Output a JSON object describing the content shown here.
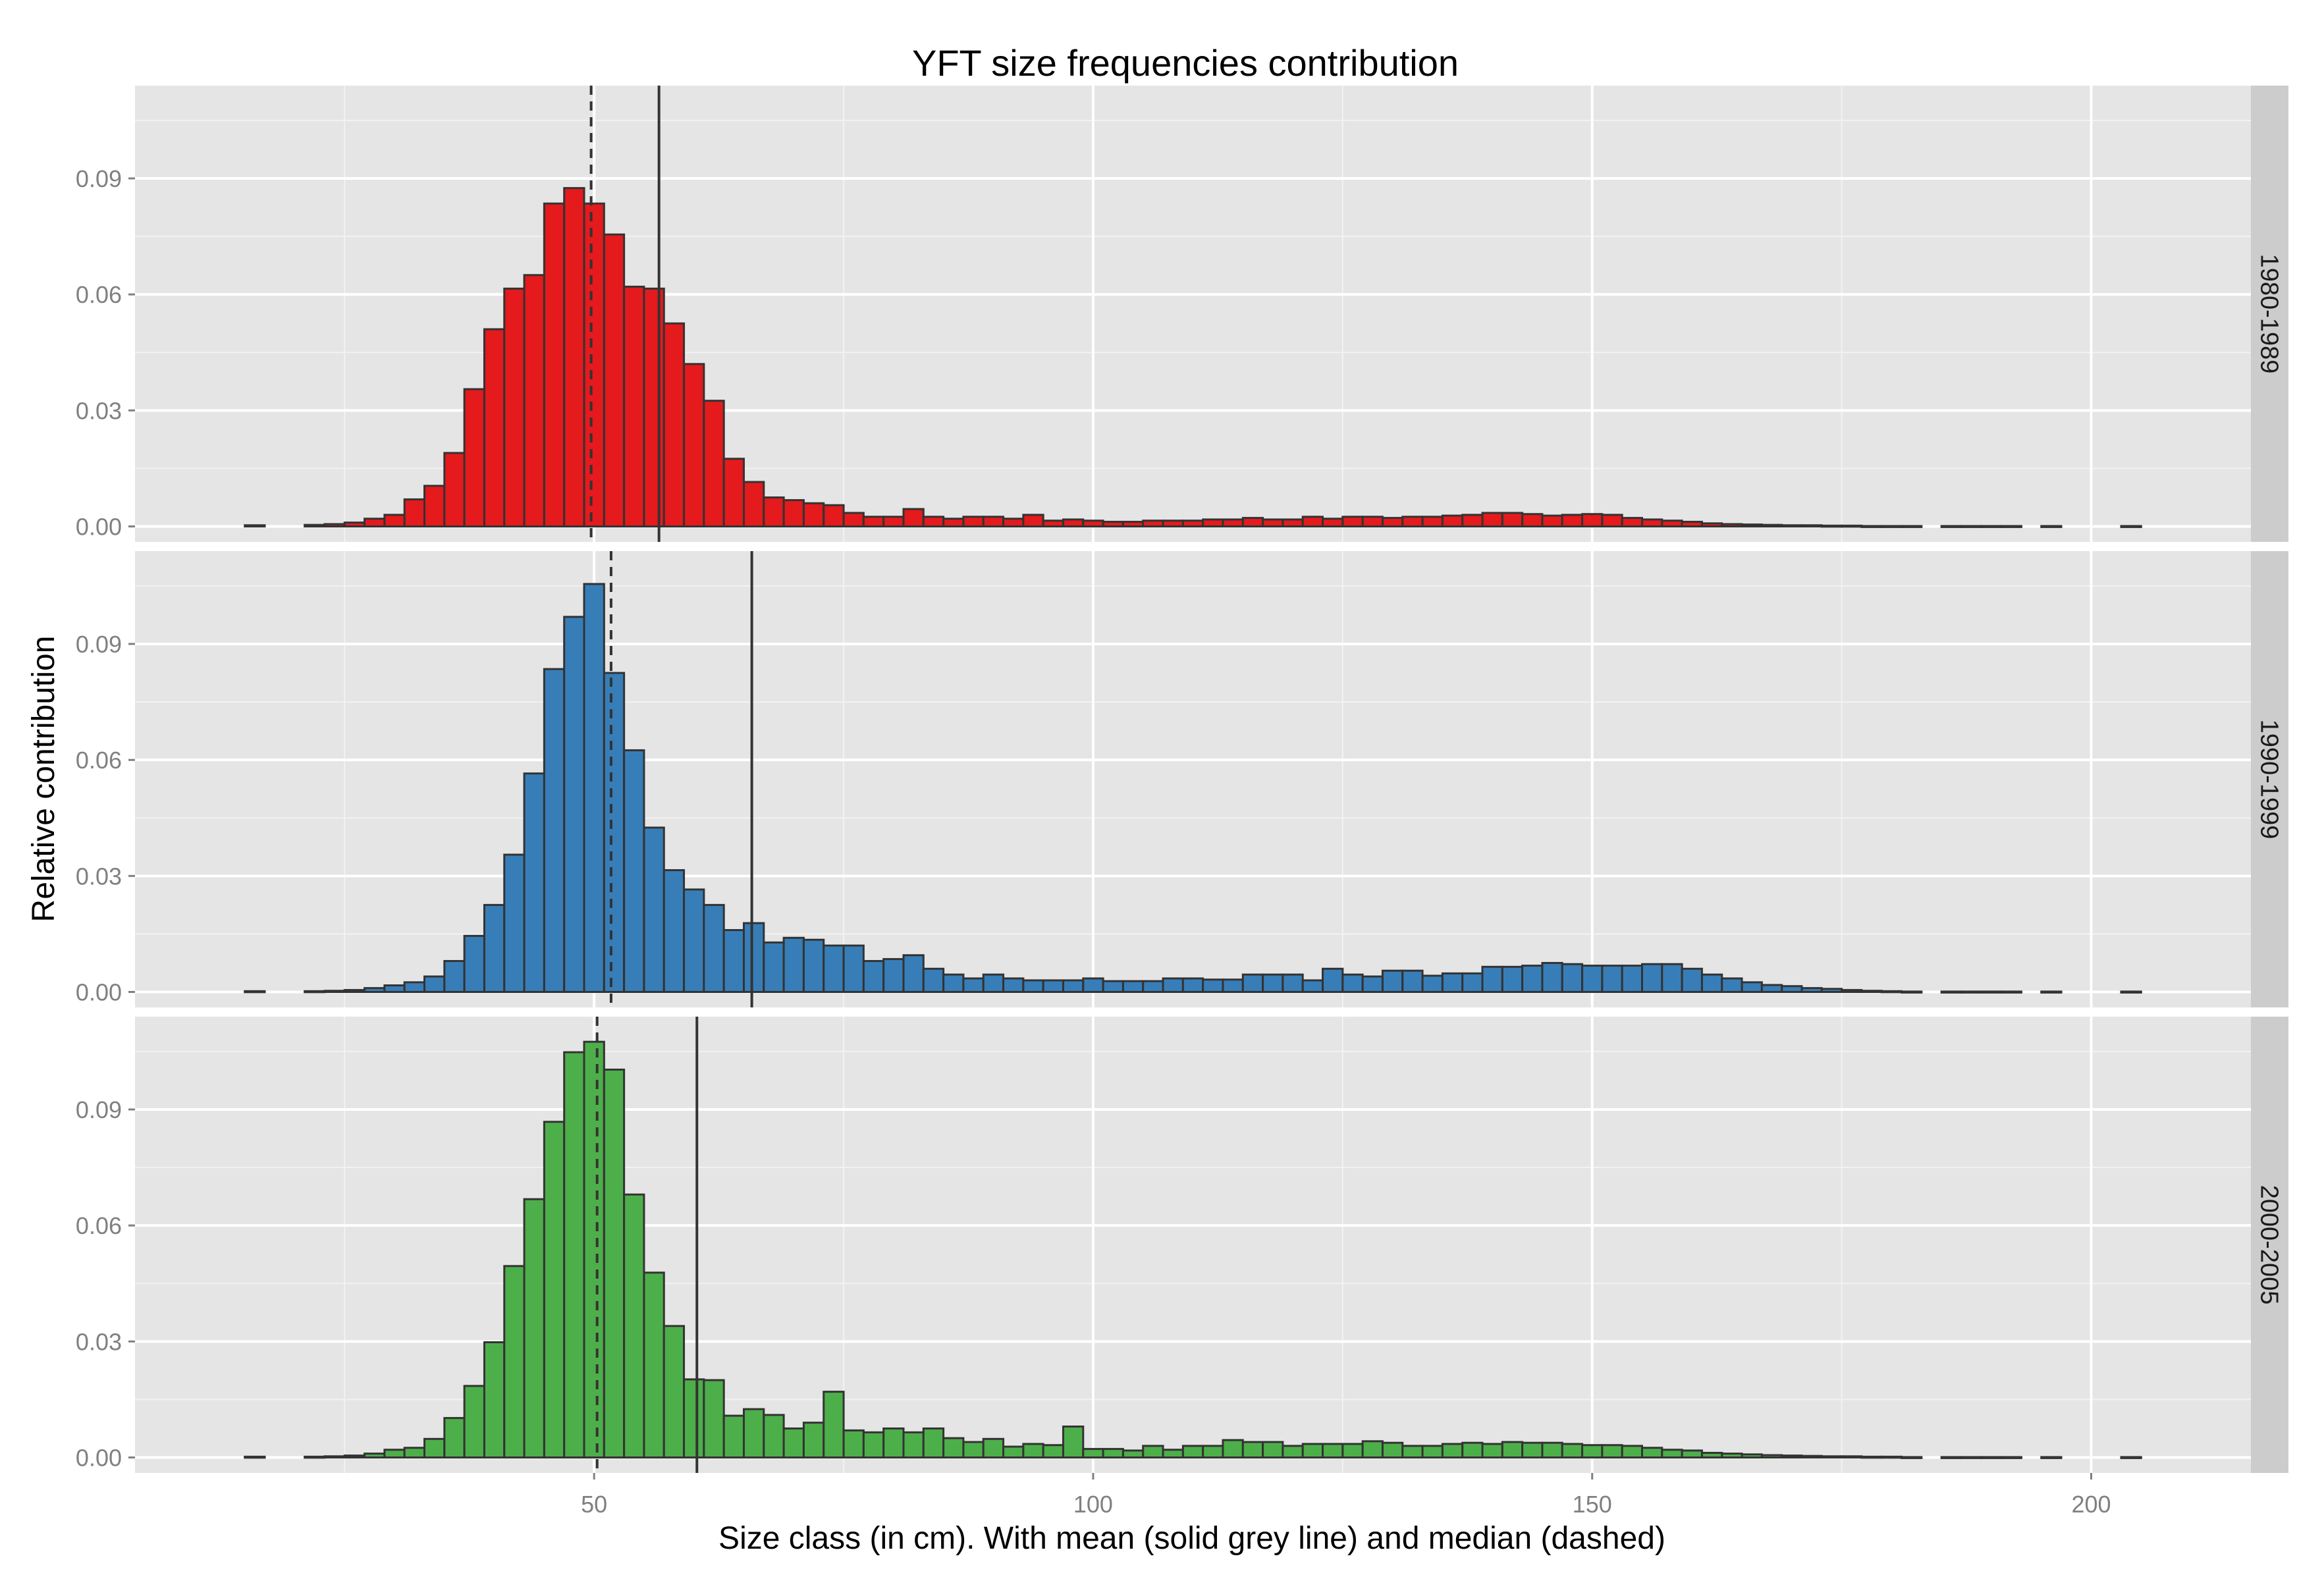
{
  "chart_data": {
    "type": "bar",
    "title": "YFT size frequencies contribution",
    "xlabel": "Size class (in cm). With mean (solid grey line) and median (dashed)",
    "ylabel": "Relative contribution",
    "xlim": [
      4,
      216
    ],
    "ylim": [
      -0.004,
      0.114
    ],
    "x_ticks": [
      50,
      100,
      150,
      200
    ],
    "x_tick_labels": [
      "50",
      "100",
      "150",
      "200"
    ],
    "y_ticks": [
      0,
      0.03,
      0.06,
      0.09
    ],
    "y_tick_labels": [
      "0.00",
      "0.03",
      "0.06",
      "0.09"
    ],
    "bin_width": 2,
    "grid": true,
    "legend": "none",
    "facets": [
      {
        "name": "1980-1989",
        "color": "#E41A1C",
        "mean": 56.5,
        "median": 49.7,
        "bins": [
          [
            16,
            0.0003
          ],
          [
            22,
            0.0004
          ],
          [
            24,
            0.0006
          ],
          [
            26,
            0.001
          ],
          [
            28,
            0.002
          ],
          [
            30,
            0.003
          ],
          [
            32,
            0.007
          ],
          [
            34,
            0.0105
          ],
          [
            36,
            0.019
          ],
          [
            38,
            0.0355
          ],
          [
            40,
            0.051
          ],
          [
            42,
            0.0615
          ],
          [
            44,
            0.065
          ],
          [
            46,
            0.0835
          ],
          [
            48,
            0.0875
          ],
          [
            50,
            0.0835
          ],
          [
            52,
            0.0755
          ],
          [
            54,
            0.062
          ],
          [
            56,
            0.0615
          ],
          [
            58,
            0.0525
          ],
          [
            60,
            0.042
          ],
          [
            62,
            0.0325
          ],
          [
            64,
            0.0175
          ],
          [
            66,
            0.0115
          ],
          [
            68,
            0.0075
          ],
          [
            70,
            0.0068
          ],
          [
            72,
            0.006
          ],
          [
            74,
            0.0055
          ],
          [
            76,
            0.0035
          ],
          [
            78,
            0.0025
          ],
          [
            80,
            0.0025
          ],
          [
            82,
            0.0045
          ],
          [
            84,
            0.0025
          ],
          [
            86,
            0.002
          ],
          [
            88,
            0.0025
          ],
          [
            90,
            0.0025
          ],
          [
            92,
            0.002
          ],
          [
            94,
            0.003
          ],
          [
            96,
            0.0015
          ],
          [
            98,
            0.0018
          ],
          [
            100,
            0.0015
          ],
          [
            102,
            0.0012
          ],
          [
            104,
            0.0012
          ],
          [
            106,
            0.0015
          ],
          [
            108,
            0.0015
          ],
          [
            110,
            0.0015
          ],
          [
            112,
            0.0018
          ],
          [
            114,
            0.0018
          ],
          [
            116,
            0.0022
          ],
          [
            118,
            0.0018
          ],
          [
            120,
            0.0018
          ],
          [
            122,
            0.0025
          ],
          [
            124,
            0.002
          ],
          [
            126,
            0.0025
          ],
          [
            128,
            0.0025
          ],
          [
            130,
            0.0022
          ],
          [
            132,
            0.0025
          ],
          [
            134,
            0.0025
          ],
          [
            136,
            0.0028
          ],
          [
            138,
            0.003
          ],
          [
            140,
            0.0035
          ],
          [
            142,
            0.0035
          ],
          [
            144,
            0.0032
          ],
          [
            146,
            0.0028
          ],
          [
            148,
            0.003
          ],
          [
            150,
            0.0032
          ],
          [
            152,
            0.003
          ],
          [
            154,
            0.0022
          ],
          [
            156,
            0.0018
          ],
          [
            158,
            0.0015
          ],
          [
            160,
            0.0012
          ],
          [
            162,
            0.0008
          ],
          [
            164,
            0.0006
          ],
          [
            166,
            0.0005
          ],
          [
            168,
            0.0004
          ],
          [
            170,
            0.0003
          ],
          [
            172,
            0.0003
          ],
          [
            174,
            0.0002
          ],
          [
            176,
            0.0002
          ],
          [
            178,
            0.0001
          ],
          [
            180,
            0.0001
          ],
          [
            182,
            0.0001
          ],
          [
            186,
            0.0001
          ],
          [
            188,
            0.0001
          ],
          [
            190,
            0.0001
          ],
          [
            192,
            0.0001
          ],
          [
            196,
            0.0001
          ],
          [
            204,
            0.0001
          ]
        ]
      },
      {
        "name": "1990-1999",
        "color": "#377EB8",
        "mean": 65.8,
        "median": 51.7,
        "bins": [
          [
            16,
            0.0002
          ],
          [
            22,
            0.0002
          ],
          [
            24,
            0.0003
          ],
          [
            26,
            0.0005
          ],
          [
            28,
            0.001
          ],
          [
            30,
            0.0017
          ],
          [
            32,
            0.0025
          ],
          [
            34,
            0.004
          ],
          [
            36,
            0.008
          ],
          [
            38,
            0.0145
          ],
          [
            40,
            0.0225
          ],
          [
            42,
            0.0355
          ],
          [
            44,
            0.0565
          ],
          [
            46,
            0.0835
          ],
          [
            48,
            0.097
          ],
          [
            50,
            0.1055
          ],
          [
            52,
            0.0825
          ],
          [
            54,
            0.0625
          ],
          [
            56,
            0.0425
          ],
          [
            58,
            0.0315
          ],
          [
            60,
            0.0265
          ],
          [
            62,
            0.0225
          ],
          [
            64,
            0.016
          ],
          [
            66,
            0.0178
          ],
          [
            68,
            0.0128
          ],
          [
            70,
            0.014
          ],
          [
            72,
            0.0135
          ],
          [
            74,
            0.012
          ],
          [
            76,
            0.012
          ],
          [
            78,
            0.008
          ],
          [
            80,
            0.0085
          ],
          [
            82,
            0.0095
          ],
          [
            84,
            0.006
          ],
          [
            86,
            0.0045
          ],
          [
            88,
            0.0035
          ],
          [
            90,
            0.0045
          ],
          [
            92,
            0.0035
          ],
          [
            94,
            0.003
          ],
          [
            96,
            0.003
          ],
          [
            98,
            0.003
          ],
          [
            100,
            0.0035
          ],
          [
            102,
            0.0028
          ],
          [
            104,
            0.0028
          ],
          [
            106,
            0.0028
          ],
          [
            108,
            0.0035
          ],
          [
            110,
            0.0035
          ],
          [
            112,
            0.0032
          ],
          [
            114,
            0.0032
          ],
          [
            116,
            0.0045
          ],
          [
            118,
            0.0045
          ],
          [
            120,
            0.0045
          ],
          [
            122,
            0.003
          ],
          [
            124,
            0.006
          ],
          [
            126,
            0.0045
          ],
          [
            128,
            0.004
          ],
          [
            130,
            0.0055
          ],
          [
            132,
            0.0055
          ],
          [
            134,
            0.0042
          ],
          [
            136,
            0.0048
          ],
          [
            138,
            0.0048
          ],
          [
            140,
            0.0065
          ],
          [
            142,
            0.0065
          ],
          [
            144,
            0.0068
          ],
          [
            146,
            0.0075
          ],
          [
            148,
            0.0072
          ],
          [
            150,
            0.0068
          ],
          [
            152,
            0.0068
          ],
          [
            154,
            0.0068
          ],
          [
            156,
            0.0072
          ],
          [
            158,
            0.0072
          ],
          [
            160,
            0.006
          ],
          [
            162,
            0.0045
          ],
          [
            164,
            0.0035
          ],
          [
            166,
            0.0025
          ],
          [
            168,
            0.0018
          ],
          [
            170,
            0.0015
          ],
          [
            172,
            0.001
          ],
          [
            174,
            0.0008
          ],
          [
            176,
            0.0005
          ],
          [
            178,
            0.0003
          ],
          [
            180,
            0.0002
          ],
          [
            182,
            0.0001
          ],
          [
            186,
            0.0001
          ],
          [
            188,
            0.0001
          ],
          [
            190,
            0.0001
          ],
          [
            192,
            0.0001
          ],
          [
            196,
            0.0001
          ],
          [
            204,
            0.0001
          ]
        ]
      },
      {
        "name": "2000-2005",
        "color": "#4DAF4A",
        "mean": 60.3,
        "median": 50.3,
        "bins": [
          [
            16,
            0.0002
          ],
          [
            22,
            0.0002
          ],
          [
            24,
            0.0003
          ],
          [
            26,
            0.0005
          ],
          [
            28,
            0.001
          ],
          [
            30,
            0.002
          ],
          [
            32,
            0.0025
          ],
          [
            34,
            0.0048
          ],
          [
            36,
            0.0102
          ],
          [
            38,
            0.0185
          ],
          [
            40,
            0.0298
          ],
          [
            42,
            0.0495
          ],
          [
            44,
            0.0668
          ],
          [
            46,
            0.0868
          ],
          [
            48,
            0.1048
          ],
          [
            50,
            0.1075
          ],
          [
            52,
            0.1003
          ],
          [
            54,
            0.068
          ],
          [
            56,
            0.0478
          ],
          [
            58,
            0.034
          ],
          [
            60,
            0.0202
          ],
          [
            62,
            0.02
          ],
          [
            64,
            0.0108
          ],
          [
            66,
            0.0125
          ],
          [
            68,
            0.011
          ],
          [
            70,
            0.0075
          ],
          [
            72,
            0.009
          ],
          [
            74,
            0.017
          ],
          [
            76,
            0.007
          ],
          [
            78,
            0.0065
          ],
          [
            80,
            0.0075
          ],
          [
            82,
            0.0065
          ],
          [
            84,
            0.0075
          ],
          [
            86,
            0.005
          ],
          [
            88,
            0.004
          ],
          [
            90,
            0.0048
          ],
          [
            92,
            0.0028
          ],
          [
            94,
            0.0035
          ],
          [
            96,
            0.0032
          ],
          [
            98,
            0.008
          ],
          [
            100,
            0.0022
          ],
          [
            102,
            0.0022
          ],
          [
            104,
            0.0018
          ],
          [
            106,
            0.003
          ],
          [
            108,
            0.002
          ],
          [
            110,
            0.003
          ],
          [
            112,
            0.003
          ],
          [
            114,
            0.0045
          ],
          [
            116,
            0.004
          ],
          [
            118,
            0.004
          ],
          [
            120,
            0.003
          ],
          [
            122,
            0.0035
          ],
          [
            124,
            0.0035
          ],
          [
            126,
            0.0035
          ],
          [
            128,
            0.0042
          ],
          [
            130,
            0.0038
          ],
          [
            132,
            0.003
          ],
          [
            134,
            0.003
          ],
          [
            136,
            0.0035
          ],
          [
            138,
            0.0038
          ],
          [
            140,
            0.0035
          ],
          [
            142,
            0.004
          ],
          [
            144,
            0.0038
          ],
          [
            146,
            0.0038
          ],
          [
            148,
            0.0035
          ],
          [
            150,
            0.0032
          ],
          [
            152,
            0.0032
          ],
          [
            154,
            0.003
          ],
          [
            156,
            0.0025
          ],
          [
            158,
            0.002
          ],
          [
            160,
            0.0018
          ],
          [
            162,
            0.0012
          ],
          [
            164,
            0.001
          ],
          [
            166,
            0.0008
          ],
          [
            168,
            0.0006
          ],
          [
            170,
            0.0005
          ],
          [
            172,
            0.0004
          ],
          [
            174,
            0.0003
          ],
          [
            176,
            0.0003
          ],
          [
            178,
            0.0002
          ],
          [
            180,
            0.0002
          ],
          [
            182,
            0.0001
          ],
          [
            186,
            0.0001
          ],
          [
            188,
            0.0001
          ],
          [
            190,
            0.0001
          ],
          [
            192,
            0.0001
          ],
          [
            196,
            0.0001
          ],
          [
            204,
            0.0001
          ]
        ]
      }
    ]
  },
  "colors": {
    "panel_background": "#E5E5E5",
    "strip_background": "#CCCCCC",
    "grid_major": "#FFFFFF",
    "grid_minor": "#F2F2F2",
    "bar_outline": "#333333",
    "reference_lines": "#333333",
    "tick_label": "#808080"
  }
}
